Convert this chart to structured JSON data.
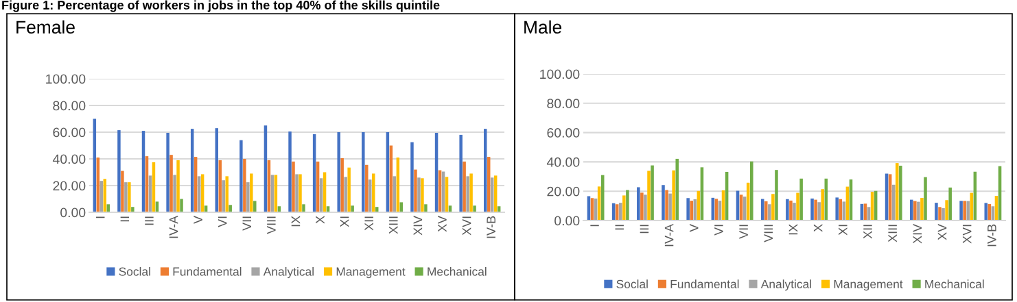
{
  "chart_data": [
    {
      "type": "bar",
      "title": "Female",
      "annotations": [
        "Figure 1: Percentage of workers in jobs in the top 40% of the skills quintile"
      ],
      "categories": [
        "I",
        "II",
        "III",
        "IV-A",
        "V",
        "VI",
        "VII",
        "VIII",
        "IX",
        "X",
        "XI",
        "XII",
        "XIII",
        "XIV",
        "XV",
        "XVI",
        "IV-B"
      ],
      "series": [
        {
          "name": "Soclal",
          "color": "#4472c4",
          "values": [
            70,
            61.5,
            61,
            59.5,
            62.5,
            63,
            54,
            65,
            60.5,
            58.5,
            60,
            60,
            60,
            52.5,
            59.5,
            58,
            62.5
          ]
        },
        {
          "name": "Fundamental",
          "color": "#ed7d31",
          "values": [
            41,
            31,
            42,
            43,
            41.5,
            39,
            40,
            39,
            38,
            38,
            40.5,
            35.5,
            50,
            32,
            31.5,
            38,
            41.5
          ]
        },
        {
          "name": "Analytical",
          "color": "#a5a5a5",
          "values": [
            23.5,
            22.5,
            27.5,
            28,
            27,
            24,
            22.5,
            28,
            28.5,
            25.5,
            26.5,
            24.5,
            27,
            26,
            30.5,
            27,
            26
          ]
        },
        {
          "name": "Management",
          "color": "#ffc000",
          "values": [
            25,
            22.5,
            37.5,
            39,
            28.5,
            27,
            29,
            28,
            28.5,
            30,
            33.5,
            29,
            41,
            25.5,
            26.5,
            29,
            27.5
          ]
        },
        {
          "name": "Mechanical",
          "color": "#70ad47",
          "values": [
            6,
            4,
            8,
            10,
            5,
            5.5,
            8.5,
            4.5,
            6,
            4.5,
            5,
            4,
            7.5,
            6,
            5,
            5,
            4.5
          ]
        }
      ],
      "ylim": [
        0,
        100
      ],
      "yticks": [
        {
          "value": 0,
          "label": "0.00"
        },
        {
          "value": 20,
          "label": "20.00"
        },
        {
          "value": 40,
          "label": "40.00"
        },
        {
          "value": 60,
          "label": "60.00"
        },
        {
          "value": 80,
          "label": "80.00"
        },
        {
          "value": 100,
          "label": "100.00"
        }
      ],
      "grid": "y",
      "legend": "bottom"
    },
    {
      "type": "bar",
      "title": "Male",
      "categories": [
        "I",
        "II",
        "III",
        "IV-A",
        "V",
        "VI",
        "VII",
        "VIII",
        "IX",
        "X",
        "XI",
        "XII",
        "XIII",
        "XIV",
        "XV",
        "XVI",
        "IV-B"
      ],
      "series": [
        {
          "name": "Soclal",
          "color": "#4472c4",
          "values": [
            16.6,
            11.8,
            22.7,
            24.2,
            15.3,
            15.5,
            20.3,
            14.7,
            14.6,
            15,
            15.7,
            11.3,
            32,
            14.2,
            12.1,
            13.4,
            12
          ]
        },
        {
          "name": "Fundamental",
          "color": "#ed7d31",
          "values": [
            15.3,
            11.1,
            19,
            20.8,
            13.5,
            14.8,
            17.6,
            13.1,
            13.6,
            14.2,
            14.6,
            11.5,
            31.6,
            13.3,
            9.2,
            13.4,
            11.2
          ]
        },
        {
          "name": "Analytical",
          "color": "#a5a5a5",
          "values": [
            15,
            12.1,
            17.6,
            18.4,
            14.5,
            13.5,
            16.3,
            11.1,
            12.1,
            12.5,
            12.9,
            9.2,
            24.4,
            12.8,
            8.4,
            13.3,
            9.7
          ]
        },
        {
          "name": "Management",
          "color": "#ffc000",
          "values": [
            23.2,
            17.1,
            33.9,
            34.2,
            20.2,
            20.6,
            25.8,
            18.1,
            18.9,
            21.4,
            23.1,
            19.6,
            39.2,
            15.4,
            13.9,
            18.9,
            16.8
          ]
        },
        {
          "name": "Mechanical",
          "color": "#70ad47",
          "values": [
            31,
            20.8,
            37.6,
            42.1,
            36.3,
            33.2,
            40.3,
            34.5,
            28.6,
            28.6,
            28,
            20.2,
            37.4,
            29.6,
            22.5,
            33.3,
            37.1
          ]
        }
      ],
      "ylim": [
        0,
        100
      ],
      "yticks": [
        {
          "value": 0,
          "label": "0.00"
        },
        {
          "value": 20,
          "label": "20.00"
        },
        {
          "value": 40,
          "label": "40.00"
        },
        {
          "value": 60,
          "label": "60.00"
        },
        {
          "value": 80,
          "label": "80.00"
        },
        {
          "value": 100,
          "label": "100.00"
        }
      ],
      "grid": "y",
      "legend": "bottom"
    }
  ]
}
